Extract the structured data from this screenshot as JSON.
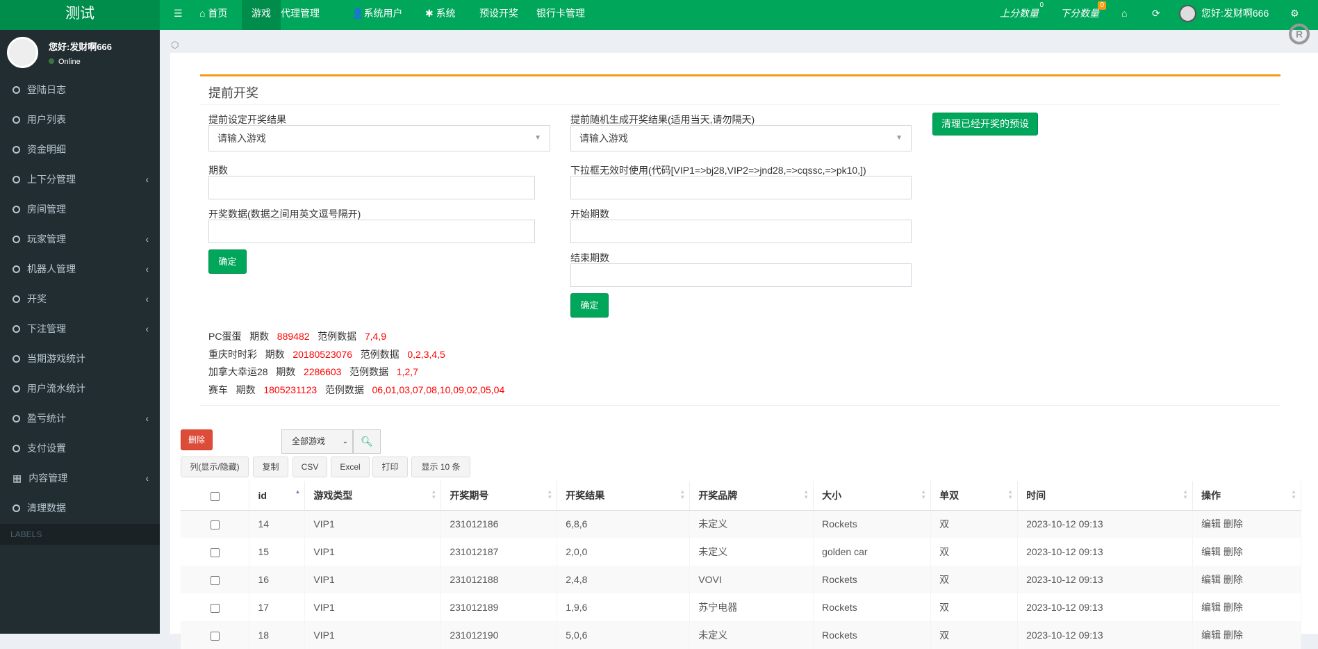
{
  "header": {
    "logo": "测试",
    "nav": [
      {
        "label": "首页",
        "icon": "home-icon"
      },
      {
        "label": "游戏"
      },
      {
        "label": "代理管理"
      },
      {
        "label": "系统用户",
        "icon": "user-icon"
      },
      {
        "label": "系统",
        "icon": "gear-icon"
      },
      {
        "label": "预设开奖"
      },
      {
        "label": "银行卡管理"
      }
    ],
    "right": {
      "up_label": "上分数量",
      "up_count": "0",
      "down_label": "下分数量",
      "down_count": "0",
      "user": "您好:发财啊666"
    },
    "colors": {
      "bar": "#00a65a",
      "logo": "#008d4c",
      "badge": "#f39c12"
    }
  },
  "sidebar": {
    "user": {
      "name": "您好:发财啊666",
      "status": "Online"
    },
    "items": [
      {
        "label": "登陆日志"
      },
      {
        "label": "用户列表"
      },
      {
        "label": "资金明细"
      },
      {
        "label": "上下分管理",
        "sub": true
      },
      {
        "label": "房间管理"
      },
      {
        "label": "玩家管理",
        "sub": true
      },
      {
        "label": "机器人管理",
        "sub": true
      },
      {
        "label": "开奖",
        "sub": true
      },
      {
        "label": "下注管理",
        "sub": true
      },
      {
        "label": "当期游戏统计"
      },
      {
        "label": "用户流水统计"
      },
      {
        "label": "盈亏统计",
        "sub": true
      },
      {
        "label": "支付设置"
      },
      {
        "label": "内容管理",
        "sub": true,
        "icon": "grid-icon"
      },
      {
        "label": "清理数据"
      }
    ],
    "labels": "LABELS"
  },
  "form": {
    "title": "提前开奖",
    "left": {
      "select_label": "提前设定开奖结果",
      "select_value": "请输入游戏",
      "period_label": "期数",
      "data_label": "开奖数据(数据之间用英文逗号隔开)",
      "confirm": "确定"
    },
    "right": {
      "select_label": "提前随机生成开奖结果(适用当天,请勿隔天)",
      "select_value": "请输入游戏",
      "code_label": "下拉框无效时使用(代码[VIP1=>bj28,VIP2=>jnd28,=>cqssc,=>pk10,])",
      "start_label": "开始期数",
      "end_label": "结束期数",
      "confirm": "确定"
    },
    "clear_button": "清理已经开奖的预设"
  },
  "examples": [
    {
      "game": "PC蛋蛋",
      "period_label": "期数",
      "period": "889482",
      "example_label": "范例数据",
      "example": "7,4,9"
    },
    {
      "game": "重庆时时彩",
      "period_label": "期数",
      "period": "20180523076",
      "example_label": "范例数据",
      "example": "0,2,3,4,5"
    },
    {
      "game": "加拿大幸运28",
      "period_label": "期数",
      "period": "2286603",
      "example_label": "范例数据",
      "example": "1,2,7"
    },
    {
      "game": "赛车",
      "period_label": "期数",
      "period": "1805231123",
      "example_label": "范例数据",
      "example": "06,01,03,07,08,10,09,02,05,04"
    }
  ],
  "toolbar": {
    "delete": "删除",
    "game_filter": "全部游戏",
    "buttons": [
      "列(显示/隐藏)",
      "复制",
      "CSV",
      "Excel",
      "打印",
      "显示 10 条"
    ]
  },
  "table": {
    "columns": [
      "id",
      "游戏类型",
      "开奖期号",
      "开奖结果",
      "开奖品牌",
      "大小",
      "单双",
      "时间",
      "操作"
    ],
    "rows": [
      {
        "id": "14",
        "type": "VIP1",
        "period": "231012186",
        "result": "6,8,6",
        "brand": "未定义",
        "size": "Rockets",
        "parity": "双",
        "time": "2023-10-12 09:13",
        "edit": "编辑",
        "del": "删除"
      },
      {
        "id": "15",
        "type": "VIP1",
        "period": "231012187",
        "result": "2,0,0",
        "brand": "未定义",
        "size": "golden car",
        "parity": "双",
        "time": "2023-10-12 09:13",
        "edit": "编辑",
        "del": "删除"
      },
      {
        "id": "16",
        "type": "VIP1",
        "period": "231012188",
        "result": "2,4,8",
        "brand": "VOVI",
        "size": "Rockets",
        "parity": "双",
        "time": "2023-10-12 09:13",
        "edit": "编辑",
        "del": "删除"
      },
      {
        "id": "17",
        "type": "VIP1",
        "period": "231012189",
        "result": "1,9,6",
        "brand": "苏宁电器",
        "size": "Rockets",
        "parity": "双",
        "time": "2023-10-12 09:13",
        "edit": "编辑",
        "del": "删除"
      },
      {
        "id": "18",
        "type": "VIP1",
        "period": "231012190",
        "result": "5,0,6",
        "brand": "未定义",
        "size": "Rockets",
        "parity": "双",
        "time": "2023-10-12 09:13",
        "edit": "编辑",
        "del": "删除"
      }
    ]
  }
}
